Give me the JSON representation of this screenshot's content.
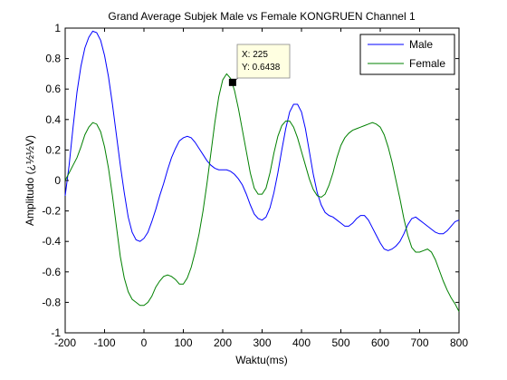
{
  "colors": {
    "background": "#ffffff",
    "axes": "#000000",
    "male": "#0000ff",
    "female": "#008000",
    "datatip_bg": "#ffffe1"
  },
  "chart_data": {
    "type": "line",
    "title": "Grand Average Subjek Male vs Female KONGRUEN Channel 1",
    "xlabel": "Waktu(ms)",
    "ylabel": "Amplitudo (¿½½V)",
    "xlim": [
      -200,
      800
    ],
    "ylim": [
      -1,
      1
    ],
    "xticks": [
      -200,
      -100,
      0,
      100,
      200,
      300,
      400,
      500,
      600,
      700,
      800
    ],
    "yticks": [
      -1,
      -0.8,
      -0.6,
      -0.4,
      -0.2,
      0,
      0.2,
      0.4,
      0.6,
      0.8,
      1
    ],
    "xtick_labels": [
      "-200",
      "-100",
      "0",
      "100",
      "200",
      "300",
      "400",
      "500",
      "600",
      "700",
      "800"
    ],
    "ytick_labels": [
      "-1",
      "-0.8",
      "-0.6",
      "-0.4",
      "-0.2",
      "0",
      "0.2",
      "0.4",
      "0.6",
      "0.8",
      "1"
    ],
    "grid": false,
    "legend_position": "top-right",
    "series": [
      {
        "name": "Male",
        "color": "#0000ff",
        "x": [
          -200,
          -190,
          -180,
          -170,
          -160,
          -150,
          -140,
          -130,
          -120,
          -110,
          -100,
          -90,
          -80,
          -70,
          -60,
          -50,
          -40,
          -30,
          -20,
          -10,
          0,
          10,
          20,
          30,
          40,
          50,
          60,
          70,
          80,
          90,
          100,
          110,
          120,
          130,
          140,
          150,
          160,
          170,
          180,
          190,
          200,
          210,
          220,
          230,
          240,
          250,
          260,
          270,
          280,
          290,
          300,
          310,
          320,
          330,
          340,
          350,
          360,
          370,
          380,
          390,
          400,
          410,
          420,
          430,
          440,
          450,
          460,
          470,
          480,
          490,
          500,
          510,
          520,
          530,
          540,
          550,
          560,
          570,
          580,
          590,
          600,
          610,
          620,
          630,
          640,
          650,
          660,
          670,
          680,
          690,
          700,
          710,
          720,
          730,
          740,
          750,
          760,
          770,
          780,
          790,
          800
        ],
        "y": [
          -0.1,
          0.1,
          0.35,
          0.58,
          0.75,
          0.87,
          0.94,
          0.98,
          0.97,
          0.92,
          0.82,
          0.68,
          0.5,
          0.3,
          0.1,
          -0.08,
          -0.24,
          -0.34,
          -0.39,
          -0.4,
          -0.38,
          -0.34,
          -0.27,
          -0.19,
          -0.1,
          -0.02,
          0.07,
          0.15,
          0.21,
          0.26,
          0.28,
          0.29,
          0.28,
          0.25,
          0.21,
          0.17,
          0.13,
          0.1,
          0.08,
          0.07,
          0.07,
          0.07,
          0.06,
          0.04,
          0.01,
          -0.03,
          -0.09,
          -0.16,
          -0.22,
          -0.25,
          -0.26,
          -0.24,
          -0.18,
          -0.08,
          0.05,
          0.2,
          0.34,
          0.45,
          0.5,
          0.5,
          0.45,
          0.34,
          0.19,
          0.04,
          -0.08,
          -0.16,
          -0.21,
          -0.23,
          -0.24,
          -0.26,
          -0.28,
          -0.3,
          -0.3,
          -0.28,
          -0.25,
          -0.23,
          -0.23,
          -0.26,
          -0.31,
          -0.36,
          -0.41,
          -0.45,
          -0.46,
          -0.45,
          -0.43,
          -0.4,
          -0.35,
          -0.29,
          -0.25,
          -0.24,
          -0.26,
          -0.28,
          -0.3,
          -0.32,
          -0.34,
          -0.35,
          -0.35,
          -0.33,
          -0.3,
          -0.27,
          -0.26
        ]
      },
      {
        "name": "Female",
        "color": "#008000",
        "x": [
          -200,
          -190,
          -180,
          -170,
          -160,
          -150,
          -140,
          -130,
          -120,
          -110,
          -100,
          -90,
          -80,
          -70,
          -60,
          -50,
          -40,
          -30,
          -20,
          -10,
          0,
          10,
          20,
          30,
          40,
          50,
          60,
          70,
          80,
          90,
          100,
          110,
          120,
          130,
          140,
          150,
          160,
          170,
          180,
          190,
          200,
          210,
          220,
          230,
          240,
          250,
          260,
          270,
          280,
          290,
          300,
          310,
          320,
          330,
          340,
          350,
          360,
          370,
          380,
          390,
          400,
          410,
          420,
          430,
          440,
          450,
          460,
          470,
          480,
          490,
          500,
          510,
          520,
          530,
          540,
          550,
          560,
          570,
          580,
          590,
          600,
          610,
          620,
          630,
          640,
          650,
          660,
          670,
          680,
          690,
          700,
          710,
          720,
          730,
          740,
          750,
          760,
          770,
          780,
          790,
          800
        ],
        "y": [
          0.0,
          0.05,
          0.1,
          0.15,
          0.22,
          0.3,
          0.35,
          0.38,
          0.37,
          0.32,
          0.22,
          0.08,
          -0.1,
          -0.3,
          -0.5,
          -0.64,
          -0.73,
          -0.78,
          -0.8,
          -0.82,
          -0.82,
          -0.8,
          -0.76,
          -0.7,
          -0.66,
          -0.63,
          -0.62,
          -0.63,
          -0.65,
          -0.68,
          -0.68,
          -0.64,
          -0.57,
          -0.47,
          -0.35,
          -0.2,
          -0.02,
          0.18,
          0.38,
          0.55,
          0.66,
          0.7,
          0.67,
          0.59,
          0.47,
          0.33,
          0.19,
          0.05,
          -0.05,
          -0.09,
          -0.09,
          -0.05,
          0.05,
          0.18,
          0.29,
          0.36,
          0.39,
          0.39,
          0.35,
          0.28,
          0.19,
          0.1,
          0.01,
          -0.06,
          -0.1,
          -0.11,
          -0.09,
          -0.03,
          0.05,
          0.15,
          0.23,
          0.28,
          0.31,
          0.33,
          0.34,
          0.35,
          0.36,
          0.37,
          0.38,
          0.37,
          0.35,
          0.3,
          0.22,
          0.12,
          0.0,
          -0.12,
          -0.25,
          -0.36,
          -0.44,
          -0.47,
          -0.47,
          -0.46,
          -0.45,
          -0.47,
          -0.52,
          -0.59,
          -0.66,
          -0.72,
          -0.77,
          -0.81,
          -0.86
        ]
      }
    ],
    "datatip": {
      "x": 225,
      "y": 0.6438,
      "x_label": "X: 225",
      "y_label": "Y: 0.6438"
    }
  }
}
